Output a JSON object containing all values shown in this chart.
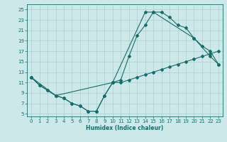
{
  "xlabel": "Humidex (Indice chaleur)",
  "background_color": "#cce8e8",
  "grid_color": "#aacfcf",
  "line_color": "#1a6b6b",
  "xlim": [
    -0.5,
    23.5
  ],
  "ylim": [
    4.5,
    26.0
  ],
  "xticks": [
    0,
    1,
    2,
    3,
    4,
    5,
    6,
    7,
    8,
    9,
    10,
    11,
    12,
    13,
    14,
    15,
    16,
    17,
    18,
    19,
    20,
    21,
    22,
    23
  ],
  "yticks": [
    5,
    7,
    9,
    11,
    13,
    15,
    17,
    19,
    21,
    23,
    25
  ],
  "line1_x": [
    0,
    1,
    2,
    3,
    4,
    5,
    6,
    7,
    8,
    9,
    10,
    11,
    12,
    13,
    14,
    15,
    16,
    17,
    18,
    19,
    20,
    21,
    22,
    23
  ],
  "line1_y": [
    12,
    10.5,
    9.5,
    8.5,
    8.0,
    7.0,
    6.5,
    5.5,
    5.5,
    8.5,
    11.0,
    11.5,
    16.0,
    20.0,
    22.0,
    24.5,
    24.5,
    23.5,
    22.0,
    21.5,
    19.5,
    18.0,
    17.0,
    14.5
  ],
  "line2_x": [
    0,
    3,
    10,
    14,
    15,
    20,
    22,
    23
  ],
  "line2_y": [
    12,
    8.5,
    11.0,
    24.5,
    24.5,
    19.5,
    16.0,
    14.5
  ],
  "line3_x": [
    0,
    1,
    2,
    3,
    4,
    5,
    6,
    7,
    8,
    9,
    10,
    11,
    12,
    13,
    14,
    15,
    16,
    17,
    18,
    19,
    20,
    21,
    22,
    23
  ],
  "line3_y": [
    12,
    10.5,
    9.5,
    8.5,
    8.0,
    7.0,
    6.5,
    5.5,
    5.5,
    8.5,
    11.0,
    11.0,
    11.5,
    12.0,
    12.5,
    13.0,
    13.5,
    14.0,
    14.5,
    15.0,
    15.5,
    16.0,
    16.5,
    17.0
  ]
}
